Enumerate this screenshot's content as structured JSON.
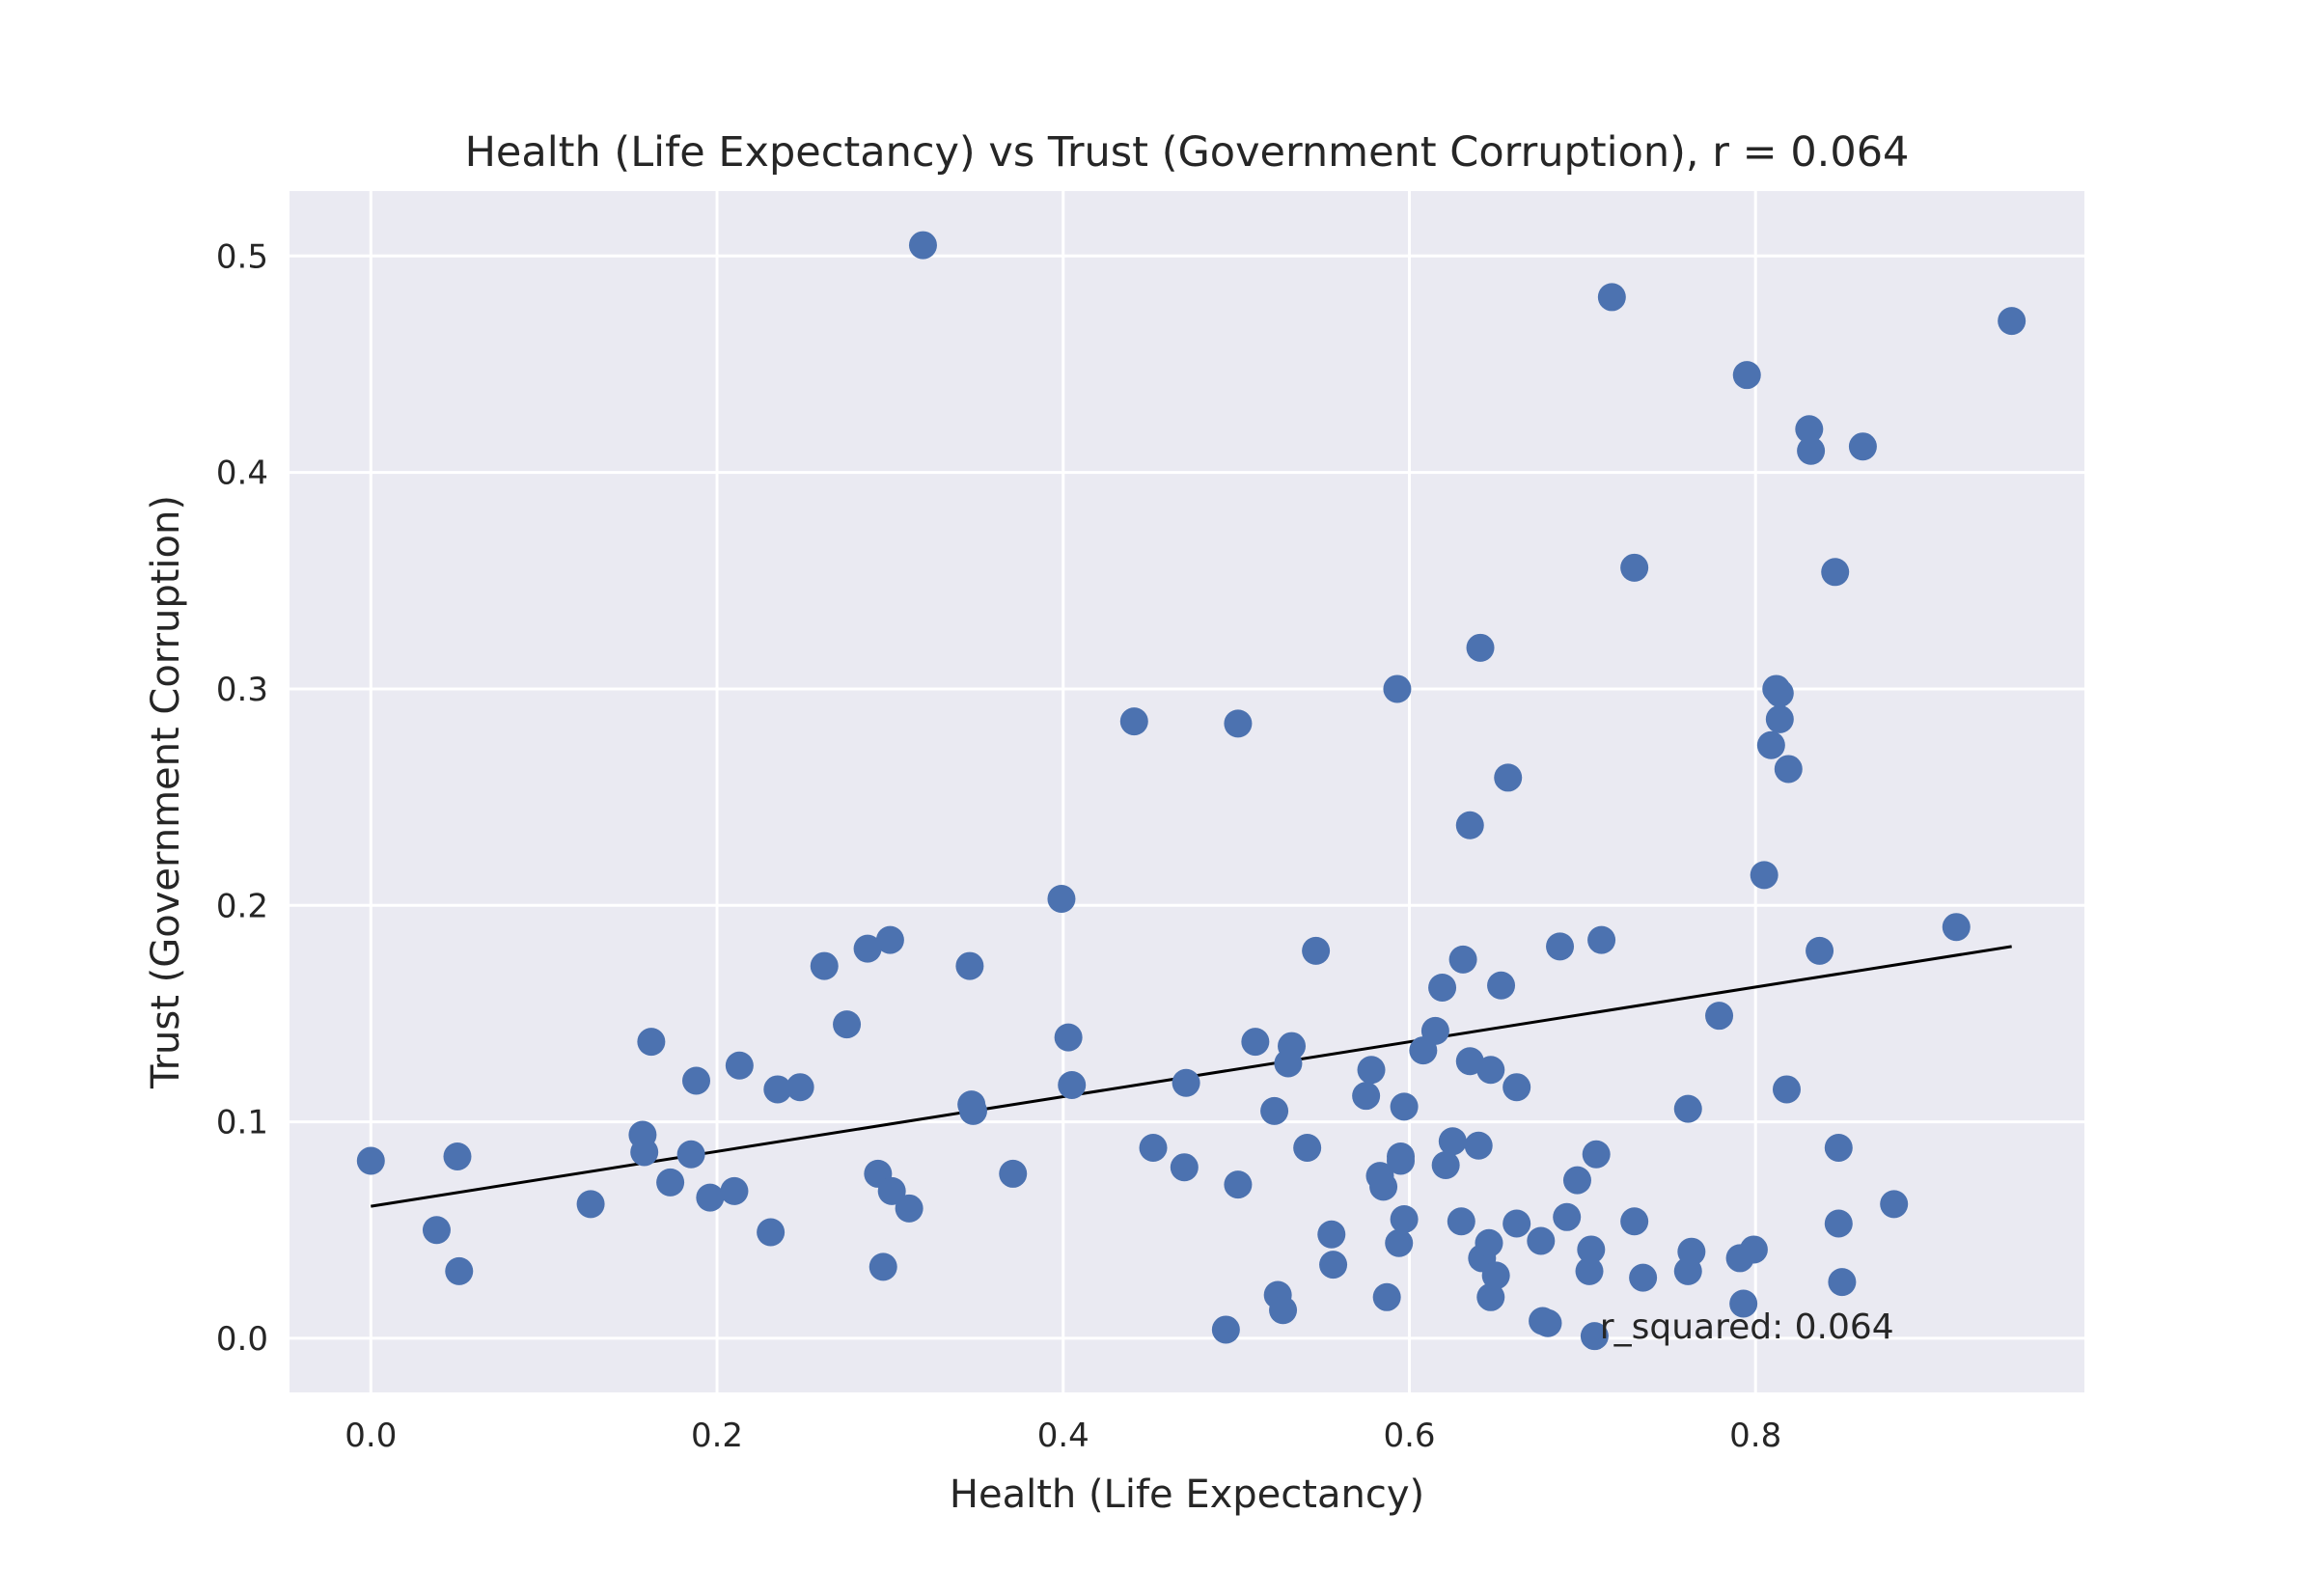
{
  "chart_data": {
    "type": "scatter",
    "title": "Health (Life Expectancy) vs Trust (Government Corruption), r = 0.064",
    "xlabel": "Health (Life Expectancy)",
    "ylabel": "Trust (Government Corruption)",
    "xlim": [
      -0.047,
      0.99
    ],
    "ylim": [
      -0.025,
      0.53
    ],
    "xticks": [
      0.0,
      0.2,
      0.4,
      0.6,
      0.8
    ],
    "xtick_labels": [
      "0.0",
      "0.2",
      "0.4",
      "0.6",
      "0.8"
    ],
    "yticks": [
      0.0,
      0.1,
      0.2,
      0.3,
      0.4,
      0.5
    ],
    "ytick_labels": [
      "0.0",
      "0.1",
      "0.2",
      "0.3",
      "0.4",
      "0.5"
    ],
    "grid": true,
    "background_color": "#eaeaf2",
    "grid_color": "#ffffff",
    "point_color": "#4c72b0",
    "line_color": "#000000",
    "annotation": {
      "text": "r_squared: 0.064",
      "x": 0.71,
      "y": 0.0
    },
    "trend_line": {
      "x": [
        0.0,
        0.948
      ],
      "y": [
        0.061,
        0.181
      ]
    },
    "series": [
      {
        "points": [
          [
            0.0,
            0.082
          ],
          [
            0.038,
            0.05
          ],
          [
            0.05,
            0.084
          ],
          [
            0.051,
            0.031
          ],
          [
            0.127,
            0.062
          ],
          [
            0.157,
            0.094
          ],
          [
            0.158,
            0.086
          ],
          [
            0.162,
            0.137
          ],
          [
            0.173,
            0.072
          ],
          [
            0.185,
            0.085
          ],
          [
            0.188,
            0.119
          ],
          [
            0.196,
            0.065
          ],
          [
            0.21,
            0.068
          ],
          [
            0.213,
            0.126
          ],
          [
            0.231,
            0.049
          ],
          [
            0.235,
            0.115
          ],
          [
            0.248,
            0.116
          ],
          [
            0.262,
            0.172
          ],
          [
            0.275,
            0.145
          ],
          [
            0.287,
            0.18
          ],
          [
            0.293,
            0.076
          ],
          [
            0.296,
            0.033
          ],
          [
            0.3,
            0.184
          ],
          [
            0.301,
            0.068
          ],
          [
            0.311,
            0.06
          ],
          [
            0.319,
            0.505
          ],
          [
            0.346,
            0.172
          ],
          [
            0.347,
            0.108
          ],
          [
            0.348,
            0.105
          ],
          [
            0.371,
            0.076
          ],
          [
            0.399,
            0.203
          ],
          [
            0.403,
            0.139
          ],
          [
            0.405,
            0.117
          ],
          [
            0.441,
            0.285
          ],
          [
            0.452,
            0.088
          ],
          [
            0.47,
            0.079
          ],
          [
            0.471,
            0.118
          ],
          [
            0.494,
            0.004
          ],
          [
            0.501,
            0.284
          ],
          [
            0.501,
            0.071
          ],
          [
            0.511,
            0.137
          ],
          [
            0.522,
            0.105
          ],
          [
            0.524,
            0.02
          ],
          [
            0.527,
            0.013
          ],
          [
            0.53,
            0.127
          ],
          [
            0.532,
            0.135
          ],
          [
            0.541,
            0.088
          ],
          [
            0.546,
            0.179
          ],
          [
            0.555,
            0.048
          ],
          [
            0.556,
            0.034
          ],
          [
            0.575,
            0.112
          ],
          [
            0.578,
            0.124
          ],
          [
            0.583,
            0.075
          ],
          [
            0.585,
            0.07
          ],
          [
            0.587,
            0.019
          ],
          [
            0.593,
            0.3
          ],
          [
            0.594,
            0.044
          ],
          [
            0.595,
            0.084
          ],
          [
            0.595,
            0.082
          ],
          [
            0.597,
            0.107
          ],
          [
            0.597,
            0.055
          ],
          [
            0.608,
            0.133
          ],
          [
            0.615,
            0.142
          ],
          [
            0.619,
            0.162
          ],
          [
            0.621,
            0.08
          ],
          [
            0.625,
            0.091
          ],
          [
            0.63,
            0.054
          ],
          [
            0.631,
            0.175
          ],
          [
            0.635,
            0.237
          ],
          [
            0.635,
            0.128
          ],
          [
            0.64,
            0.089
          ],
          [
            0.641,
            0.319
          ],
          [
            0.642,
            0.037
          ],
          [
            0.646,
            0.044
          ],
          [
            0.647,
            0.124
          ],
          [
            0.647,
            0.019
          ],
          [
            0.65,
            0.029
          ],
          [
            0.653,
            0.163
          ],
          [
            0.657,
            0.259
          ],
          [
            0.662,
            0.116
          ],
          [
            0.662,
            0.053
          ],
          [
            0.676,
            0.045
          ],
          [
            0.677,
            0.008
          ],
          [
            0.68,
            0.007
          ],
          [
            0.687,
            0.181
          ],
          [
            0.691,
            0.056
          ],
          [
            0.697,
            0.073
          ],
          [
            0.704,
            0.031
          ],
          [
            0.705,
            0.041
          ],
          [
            0.707,
            0.001
          ],
          [
            0.708,
            0.085
          ],
          [
            0.711,
            0.184
          ],
          [
            0.717,
            0.481
          ],
          [
            0.73,
            0.356
          ],
          [
            0.73,
            0.054
          ],
          [
            0.735,
            0.028
          ],
          [
            0.761,
            0.106
          ],
          [
            0.761,
            0.031
          ],
          [
            0.763,
            0.04
          ],
          [
            0.779,
            0.149
          ],
          [
            0.791,
            0.037
          ],
          [
            0.793,
            0.016
          ],
          [
            0.795,
            0.445
          ],
          [
            0.799,
            0.041
          ],
          [
            0.805,
            0.214
          ],
          [
            0.809,
            0.274
          ],
          [
            0.812,
            0.3
          ],
          [
            0.814,
            0.298
          ],
          [
            0.814,
            0.286
          ],
          [
            0.818,
            0.115
          ],
          [
            0.819,
            0.263
          ],
          [
            0.831,
            0.42
          ],
          [
            0.832,
            0.41
          ],
          [
            0.837,
            0.179
          ],
          [
            0.846,
            0.354
          ],
          [
            0.848,
            0.088
          ],
          [
            0.848,
            0.053
          ],
          [
            0.85,
            0.026
          ],
          [
            0.862,
            0.412
          ],
          [
            0.88,
            0.062
          ],
          [
            0.916,
            0.19
          ],
          [
            0.948,
            0.47
          ]
        ]
      }
    ]
  }
}
